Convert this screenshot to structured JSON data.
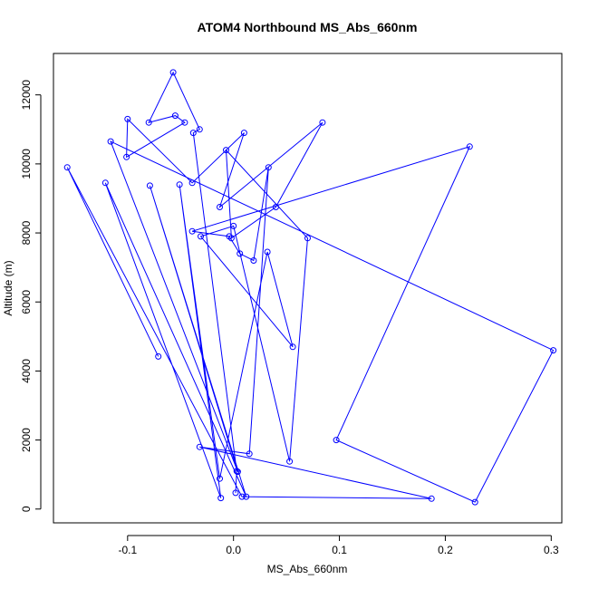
{
  "chart_data": {
    "type": "line+scatter",
    "title": "ATOM4 Northbound MS_Abs_660nm",
    "xlabel": "MS_Abs_660nm",
    "ylabel": "Altitude (m)",
    "xlim": [
      -0.17,
      0.31
    ],
    "ylim": [
      -400,
      13200
    ],
    "x_ticks": [
      -0.1,
      0.0,
      0.1,
      0.2,
      0.3
    ],
    "x_tick_labels": [
      "-0.1",
      "0.0",
      "0.1",
      "0.2",
      "0.3"
    ],
    "y_ticks": [
      0,
      2000,
      4000,
      6000,
      8000,
      10000,
      12000
    ],
    "y_tick_labels": [
      "0",
      "2000",
      "4000",
      "6000",
      "8000",
      "10000",
      "12000"
    ],
    "grid": false,
    "series_color": "#0000ff",
    "series": [
      {
        "x": [
          -0.071,
          -0.157,
          0.008,
          0.187,
          -0.032,
          0.015,
          0.033,
          0.019,
          0.006,
          -0.004,
          -0.039,
          0.223,
          0.097,
          0.228,
          0.302,
          -0.116,
          0.004,
          -0.079,
          0.012,
          -0.121,
          -0.012,
          -0.051,
          -0.013,
          0.032,
          0.056,
          -0.031,
          0.0,
          0.053,
          0.07,
          -0.007,
          -0.002,
          0.04,
          0.084,
          -0.013,
          0.01,
          -0.039,
          -0.1,
          -0.101,
          -0.046,
          -0.055,
          -0.08,
          -0.057,
          -0.032,
          -0.038,
          0.003,
          0.002
        ],
        "y": [
          4420,
          9900,
          360,
          300,
          1800,
          1600,
          9900,
          7200,
          7400,
          7900,
          8050,
          10500,
          2000,
          200,
          4600,
          10650,
          1080,
          9370,
          360,
          9450,
          320,
          9400,
          880,
          7450,
          4700,
          7900,
          8200,
          1380,
          7850,
          10400,
          7850,
          8750,
          11200,
          8750,
          10900,
          9450,
          11300,
          10200,
          11200,
          11400,
          11200,
          12650,
          11000,
          10900,
          1100,
          470
        ]
      }
    ]
  }
}
